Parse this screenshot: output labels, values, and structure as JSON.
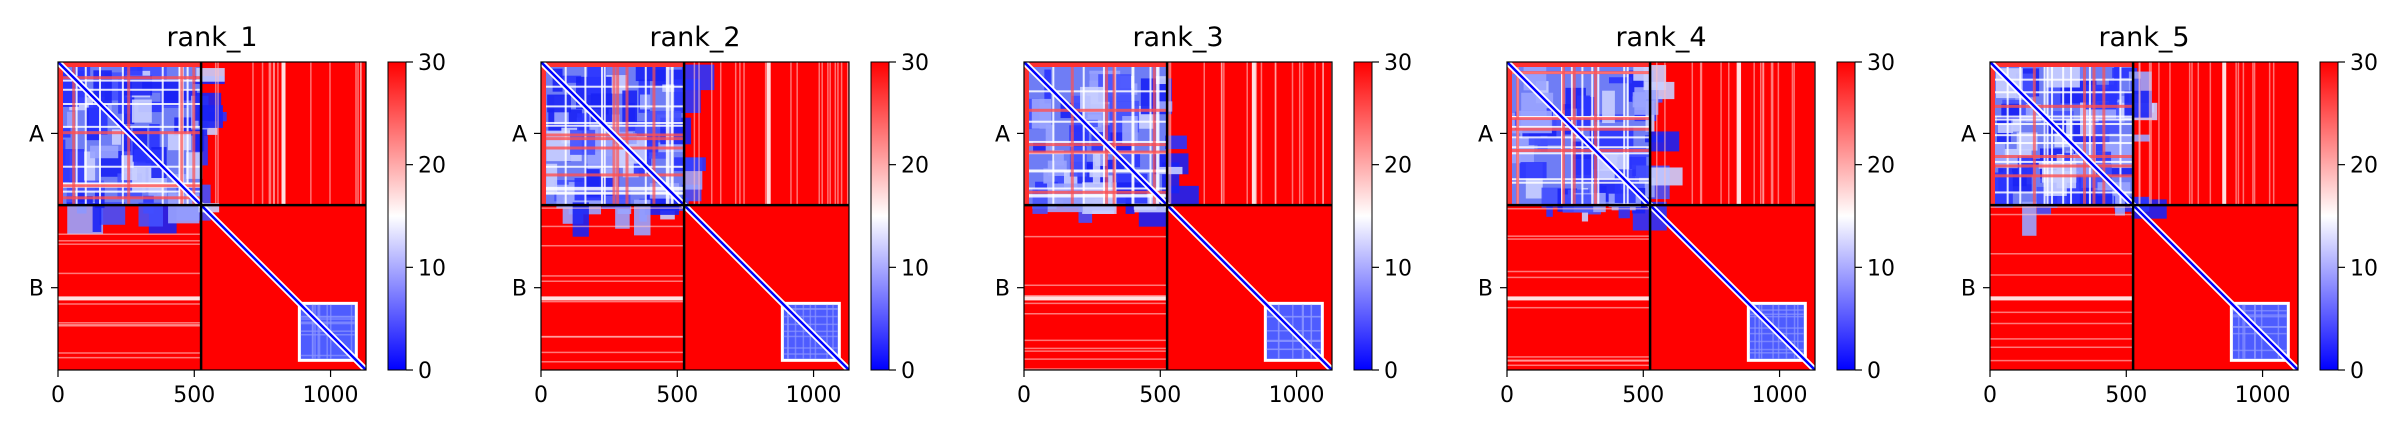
{
  "chart_data": {
    "type": "heatmap",
    "xlim": [
      0,
      1130
    ],
    "ylim": [
      0,
      1130
    ],
    "chain_break": 525,
    "chain_labels": [
      "A",
      "B"
    ],
    "chain_label_positions": [
      262,
      828
    ],
    "x_ticks": [
      0,
      500,
      1000
    ],
    "x_tick_labels": [
      "0",
      "500",
      "1000"
    ],
    "colorbar": {
      "min": 0,
      "max": 30,
      "ticks": [
        0,
        10,
        20,
        30
      ],
      "tick_labels": [
        "0",
        "10",
        "20",
        "30"
      ],
      "colors": [
        "#0000ff",
        "#ffffff",
        "#ff0000"
      ]
    },
    "panels": [
      {
        "title": "rank_1"
      },
      {
        "title": "rank_2"
      },
      {
        "title": "rank_3"
      },
      {
        "title": "rank_4"
      },
      {
        "title": "rank_5"
      }
    ]
  }
}
